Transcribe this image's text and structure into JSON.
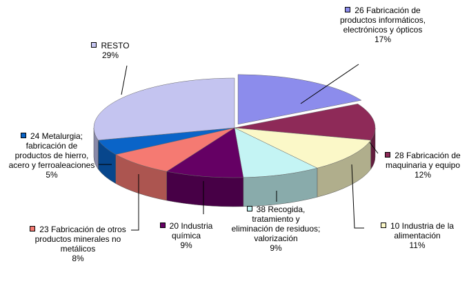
{
  "chart_data": {
    "type": "pie3d",
    "categories": [
      "26 Fabricación de productos informáticos, electrónicos y ópticos",
      "28 Fabricación de maquinaria y equipo",
      "10 Industria de la alimentación",
      "38 Recogida, tratamiento y eliminación de residuos; valorización",
      "20 Industria química",
      "23 Fabricación de otros productos minerales no metálicos",
      "24 Metalurgia; fabricación de productos de hierro, acero y ferroaleaciones",
      "RESTO"
    ],
    "values": [
      17,
      12,
      11,
      9,
      9,
      8,
      5,
      29
    ],
    "value_labels": [
      "17%",
      "12%",
      "11%",
      "9%",
      "9%",
      "8%",
      "5%",
      "29%"
    ],
    "colors": [
      "#8c8cec",
      "#8e2a58",
      "#fbf8c8",
      "#c4f4f4",
      "#650064",
      "#f57a72",
      "#0a64c8",
      "#c4c4f0"
    ]
  }
}
